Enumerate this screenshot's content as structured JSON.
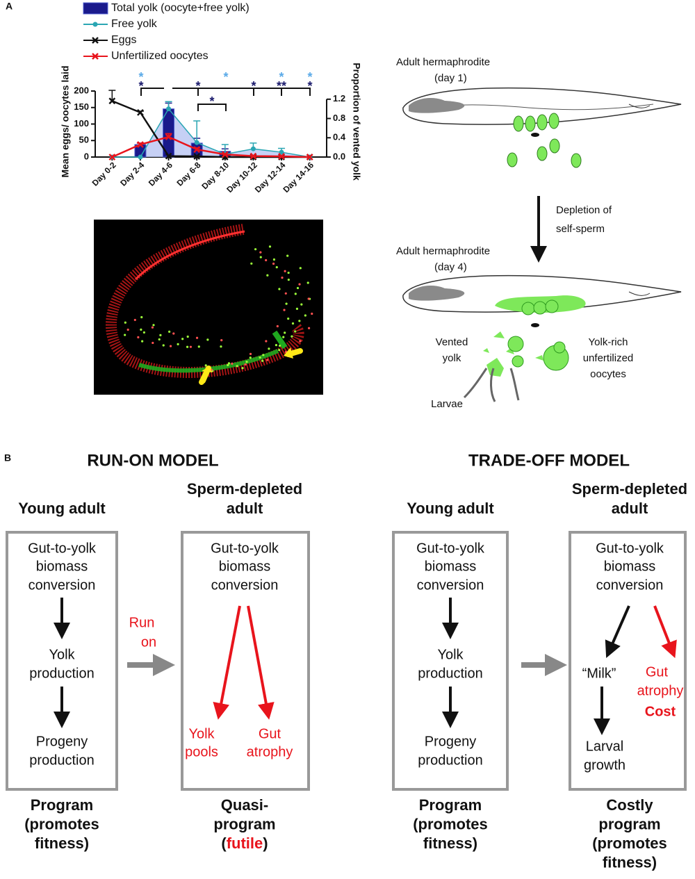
{
  "chart_data": {
    "type": "combo",
    "categories": [
      "Day 0-2",
      "Day 2-4",
      "Day 4-6",
      "Day 6-8",
      "Day 8-10",
      "Day 10-12",
      "Day 12-14",
      "Day 14-16"
    ],
    "ylim": [
      0,
      200
    ],
    "yticks": [
      0,
      50,
      100,
      150,
      200
    ],
    "y2lim": [
      0,
      1.37
    ],
    "y2ticks": [
      {
        "value": 0,
        "label": "0.0"
      },
      0.4,
      0.8,
      1.2
    ],
    "ylabel": "Mean eggs/ oocytes laid",
    "y2label": "Proportion of vented yolk",
    "series": [
      {
        "name": "Total yolk (oocyte+free yolk)",
        "type": "bar",
        "axis": "y2",
        "color": "#1a1a8c",
        "values": [
          0,
          0.26,
          1.0,
          0.29,
          0.12,
          0.02,
          0.02,
          0
        ],
        "errors": [
          null,
          0.03,
          0.12,
          0.1,
          0.05,
          null,
          null,
          null
        ]
      },
      {
        "name": "Free yolk",
        "type": "line",
        "marker": "circle",
        "axis": "y2",
        "color": "#2aa6b3",
        "area_color": "#b8c4f2",
        "values": [
          0,
          0,
          1.0,
          0.3,
          0.06,
          0.17,
          0.1,
          0
        ],
        "errors": [
          null,
          null,
          0.15,
          0.45,
          0.2,
          0.12,
          0.08,
          null
        ]
      },
      {
        "name": "Eggs",
        "type": "line",
        "marker": "x",
        "axis": "y",
        "color": "#111111",
        "values": [
          170,
          135,
          3,
          2,
          0,
          0,
          0,
          0
        ],
        "errors": [
          32,
          4,
          null,
          null,
          null,
          null,
          null,
          null
        ]
      },
      {
        "name": "Unfertilized oocytes",
        "type": "line",
        "marker": "x",
        "axis": "y",
        "color": "#e8141c",
        "values": [
          0,
          38,
          61,
          23,
          8,
          3,
          2,
          0
        ],
        "errors": [
          null,
          4,
          10,
          5,
          null,
          null,
          null,
          null
        ]
      }
    ],
    "annotations": [
      {
        "text": "*",
        "color": "#5aaae8"
      },
      {
        "text": "*",
        "color": "#1a1a6c"
      },
      {
        "text": "*",
        "color": "#1a1a6c"
      },
      {
        "text": "*",
        "color": "#5aaae8"
      },
      {
        "text": "*",
        "color": "#1a1a6c"
      },
      {
        "text": "*",
        "color": "#5aaae8"
      },
      {
        "text": "**",
        "color": "#1a1a6c"
      },
      {
        "text": "*",
        "color": "#5aaae8"
      },
      {
        "text": "*",
        "color": "#1a1a6c"
      },
      {
        "text": "*",
        "color": "#1a1a6c"
      }
    ],
    "legend": "top"
  },
  "panel_a": {
    "label": "A",
    "diagram": {
      "stage1": [
        "Adult hermaphrodite",
        "(day 1)"
      ],
      "transition": [
        "Depletion of",
        "self-sperm"
      ],
      "stage2": [
        "Adult hermaphrodite",
        "(day 4)"
      ],
      "vented": [
        "Vented",
        "yolk"
      ],
      "oocytes": [
        "Yolk-rich",
        "unfertilized",
        "oocytes"
      ],
      "larvae": "Larvae"
    }
  },
  "panel_b": {
    "label": "B",
    "models": [
      {
        "title": "RUN-ON MODEL",
        "transition": [
          "Run",
          "on"
        ],
        "columns": [
          {
            "header": [
              "Young adult"
            ],
            "box": [
              "Gut-to-yolk",
              "biomass",
              "conversion",
              "Yolk",
              "production",
              "Progeny",
              "production"
            ],
            "footer": [
              "Program",
              "(promotes",
              "fitness)"
            ]
          },
          {
            "header": [
              "Sperm-depleted",
              "adult"
            ],
            "box": [
              "Gut-to-yolk",
              "biomass",
              "conversion",
              "Yolk",
              "pools",
              "Gut",
              "atrophy"
            ],
            "footer": [
              "Quasi-",
              "program"
            ],
            "footer_last": [
              "(",
              "futile",
              ")"
            ]
          }
        ]
      },
      {
        "title": "TRADE-OFF MODEL",
        "columns": [
          {
            "header": [
              "Young adult"
            ],
            "box": [
              "Gut-to-yolk",
              "biomass",
              "conversion",
              "Yolk",
              "production",
              "Progeny",
              "production"
            ],
            "footer": [
              "Program",
              "(promotes",
              "fitness)"
            ]
          },
          {
            "header": [
              "Sperm-depleted",
              "adult"
            ],
            "box": [
              "Gut-to-yolk",
              "biomass",
              "conversion",
              "“Milk”",
              "Larval",
              "growth",
              "Gut",
              "atrophy",
              "Cost"
            ],
            "footer": [
              "Costly",
              "program",
              "(promotes",
              "fitness)"
            ]
          }
        ]
      }
    ]
  }
}
